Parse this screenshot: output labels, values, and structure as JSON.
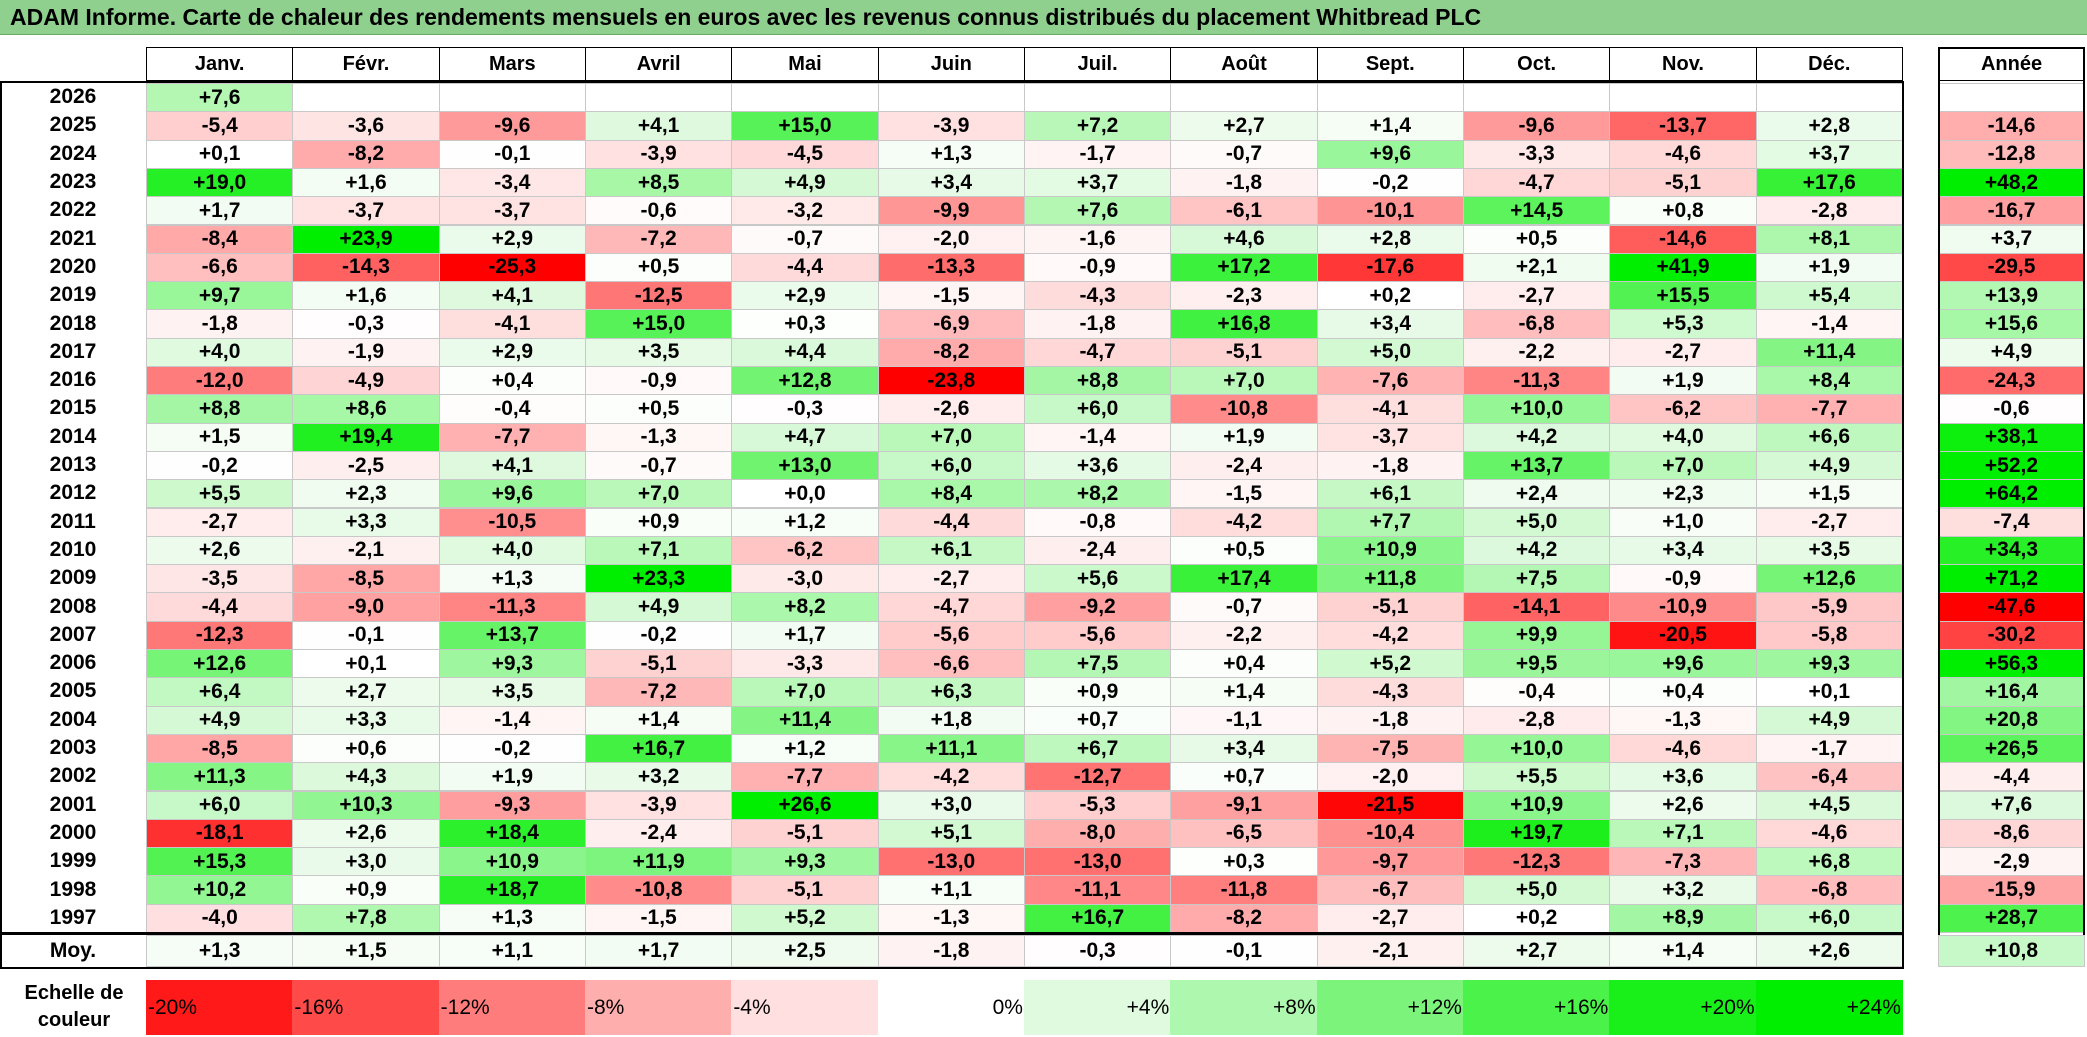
{
  "title": "ADAM Informe. Carte de chaleur des rendements mensuels en euros avec les revenus connus distribués du placement Whitbread PLC",
  "chart_data": {
    "type": "heatmap",
    "title": "ADAM Informe. Carte de chaleur des rendements mensuels en euros avec les revenus connus distribués du placement Whitbread PLC",
    "columns": [
      "Janv.",
      "Févr.",
      "Mars",
      "Avril",
      "Mai",
      "Juin",
      "Juil.",
      "Août",
      "Sept.",
      "Oct.",
      "Nov.",
      "Déc."
    ],
    "year_header": "Année",
    "rows": [
      {
        "year": "2026",
        "months": [
          "+7,6",
          "",
          "",
          "",
          "",
          "",
          "",
          "",
          "",
          "",
          "",
          ""
        ],
        "annual": ""
      },
      {
        "year": "2025",
        "months": [
          "-5,4",
          "-3,6",
          "-9,6",
          "+4,1",
          "+15,0",
          "-3,9",
          "+7,2",
          "+2,7",
          "+1,4",
          "-9,6",
          "-13,7",
          "+2,8"
        ],
        "annual": "-14,6"
      },
      {
        "year": "2024",
        "months": [
          "+0,1",
          "-8,2",
          "-0,1",
          "-3,9",
          "-4,5",
          "+1,3",
          "-1,7",
          "-0,7",
          "+9,6",
          "-3,3",
          "-4,6",
          "+3,7"
        ],
        "annual": "-12,8"
      },
      {
        "year": "2023",
        "months": [
          "+19,0",
          "+1,6",
          "-3,4",
          "+8,5",
          "+4,9",
          "+3,4",
          "+3,7",
          "-1,8",
          "-0,2",
          "-4,7",
          "-5,1",
          "+17,6"
        ],
        "annual": "+48,2"
      },
      {
        "year": "2022",
        "months": [
          "+1,7",
          "-3,7",
          "-3,7",
          "-0,6",
          "-3,2",
          "-9,9",
          "+7,6",
          "-6,1",
          "-10,1",
          "+14,5",
          "+0,8",
          "-2,8"
        ],
        "annual": "-16,7"
      },
      {
        "year": "2021",
        "months": [
          "-8,4",
          "+23,9",
          "+2,9",
          "-7,2",
          "-0,7",
          "-2,0",
          "-1,6",
          "+4,6",
          "+2,8",
          "+0,5",
          "-14,6",
          "+8,1"
        ],
        "annual": "+3,7"
      },
      {
        "year": "2020",
        "months": [
          "-6,6",
          "-14,3",
          "-25,3",
          "+0,5",
          "-4,4",
          "-13,3",
          "-0,9",
          "+17,2",
          "-17,6",
          "+2,1",
          "+41,9",
          "+1,9"
        ],
        "annual": "-29,5"
      },
      {
        "year": "2019",
        "months": [
          "+9,7",
          "+1,6",
          "+4,1",
          "-12,5",
          "+2,9",
          "-1,5",
          "-4,3",
          "-2,3",
          "+0,2",
          "-2,7",
          "+15,5",
          "+5,4"
        ],
        "annual": "+13,9"
      },
      {
        "year": "2018",
        "months": [
          "-1,8",
          "-0,3",
          "-4,1",
          "+15,0",
          "+0,3",
          "-6,9",
          "-1,8",
          "+16,8",
          "+3,4",
          "-6,8",
          "+5,3",
          "-1,4"
        ],
        "annual": "+15,6"
      },
      {
        "year": "2017",
        "months": [
          "+4,0",
          "-1,9",
          "+2,9",
          "+3,5",
          "+4,4",
          "-8,2",
          "-4,7",
          "-5,1",
          "+5,0",
          "-2,2",
          "-2,7",
          "+11,4"
        ],
        "annual": "+4,9"
      },
      {
        "year": "2016",
        "months": [
          "-12,0",
          "-4,9",
          "+0,4",
          "-0,9",
          "+12,8",
          "-23,8",
          "+8,8",
          "+7,0",
          "-7,6",
          "-11,3",
          "+1,9",
          "+8,4"
        ],
        "annual": "-24,3"
      },
      {
        "year": "2015",
        "months": [
          "+8,8",
          "+8,6",
          "-0,4",
          "+0,5",
          "-0,3",
          "-2,6",
          "+6,0",
          "-10,8",
          "-4,1",
          "+10,0",
          "-6,2",
          "-7,7"
        ],
        "annual": "-0,6"
      },
      {
        "year": "2014",
        "months": [
          "+1,5",
          "+19,4",
          "-7,7",
          "-1,3",
          "+4,7",
          "+7,0",
          "-1,4",
          "+1,9",
          "-3,7",
          "+4,2",
          "+4,0",
          "+6,6"
        ],
        "annual": "+38,1"
      },
      {
        "year": "2013",
        "months": [
          "-0,2",
          "-2,5",
          "+4,1",
          "-0,7",
          "+13,0",
          "+6,0",
          "+3,6",
          "-2,4",
          "-1,8",
          "+13,7",
          "+7,0",
          "+4,9"
        ],
        "annual": "+52,2"
      },
      {
        "year": "2012",
        "months": [
          "+5,5",
          "+2,3",
          "+9,6",
          "+7,0",
          "+0,0",
          "+8,4",
          "+8,2",
          "-1,5",
          "+6,1",
          "+2,4",
          "+2,3",
          "+1,5"
        ],
        "annual": "+64,2"
      },
      {
        "year": "2011",
        "months": [
          "-2,7",
          "+3,3",
          "-10,5",
          "+0,9",
          "+1,2",
          "-4,4",
          "-0,8",
          "-4,2",
          "+7,7",
          "+5,0",
          "+1,0",
          "-2,7"
        ],
        "annual": "-7,4"
      },
      {
        "year": "2010",
        "months": [
          "+2,6",
          "-2,1",
          "+4,0",
          "+7,1",
          "-6,2",
          "+6,1",
          "-2,4",
          "+0,5",
          "+10,9",
          "+4,2",
          "+3,4",
          "+3,5"
        ],
        "annual": "+34,3"
      },
      {
        "year": "2009",
        "months": [
          "-3,5",
          "-8,5",
          "+1,3",
          "+23,3",
          "-3,0",
          "-2,7",
          "+5,6",
          "+17,4",
          "+11,8",
          "+7,5",
          "-0,9",
          "+12,6"
        ],
        "annual": "+71,2"
      },
      {
        "year": "2008",
        "months": [
          "-4,4",
          "-9,0",
          "-11,3",
          "+4,9",
          "+8,2",
          "-4,7",
          "-9,2",
          "-0,7",
          "-5,1",
          "-14,1",
          "-10,9",
          "-5,9"
        ],
        "annual": "-47,6"
      },
      {
        "year": "2007",
        "months": [
          "-12,3",
          "-0,1",
          "+13,7",
          "-0,2",
          "+1,7",
          "-5,6",
          "-5,6",
          "-2,2",
          "-4,2",
          "+9,9",
          "-20,5",
          "-5,8"
        ],
        "annual": "-30,2"
      },
      {
        "year": "2006",
        "months": [
          "+12,6",
          "+0,1",
          "+9,3",
          "-5,1",
          "-3,3",
          "-6,6",
          "+7,5",
          "+0,4",
          "+5,2",
          "+9,5",
          "+9,6",
          "+9,3"
        ],
        "annual": "+56,3"
      },
      {
        "year": "2005",
        "months": [
          "+6,4",
          "+2,7",
          "+3,5",
          "-7,2",
          "+7,0",
          "+6,3",
          "+0,9",
          "+1,4",
          "-4,3",
          "-0,4",
          "+0,4",
          "+0,1"
        ],
        "annual": "+16,4"
      },
      {
        "year": "2004",
        "months": [
          "+4,9",
          "+3,3",
          "-1,4",
          "+1,4",
          "+11,4",
          "+1,8",
          "+0,7",
          "-1,1",
          "-1,8",
          "-2,8",
          "-1,3",
          "+4,9"
        ],
        "annual": "+20,8"
      },
      {
        "year": "2003",
        "months": [
          "-8,5",
          "+0,6",
          "-0,2",
          "+16,7",
          "+1,2",
          "+11,1",
          "+6,7",
          "+3,4",
          "-7,5",
          "+10,0",
          "-4,6",
          "-1,7"
        ],
        "annual": "+26,5"
      },
      {
        "year": "2002",
        "months": [
          "+11,3",
          "+4,3",
          "+1,9",
          "+3,2",
          "-7,7",
          "-4,2",
          "-12,7",
          "+0,7",
          "-2,0",
          "+5,5",
          "+3,6",
          "-6,4"
        ],
        "annual": "-4,4"
      },
      {
        "year": "2001",
        "months": [
          "+6,0",
          "+10,3",
          "-9,3",
          "-3,9",
          "+26,6",
          "+3,0",
          "-5,3",
          "-9,1",
          "-21,5",
          "+10,9",
          "+2,6",
          "+4,5"
        ],
        "annual": "+7,6"
      },
      {
        "year": "2000",
        "months": [
          "-18,1",
          "+2,6",
          "+18,4",
          "-2,4",
          "-5,1",
          "+5,1",
          "-8,0",
          "-6,5",
          "-10,4",
          "+19,7",
          "+7,1",
          "-4,6"
        ],
        "annual": "-8,6"
      },
      {
        "year": "1999",
        "months": [
          "+15,3",
          "+3,0",
          "+10,9",
          "+11,9",
          "+9,3",
          "-13,0",
          "-13,0",
          "+0,3",
          "-9,7",
          "-12,3",
          "-7,3",
          "+6,8"
        ],
        "annual": "-2,9"
      },
      {
        "year": "1998",
        "months": [
          "+10,2",
          "+0,9",
          "+18,7",
          "-10,8",
          "-5,1",
          "+1,1",
          "-11,1",
          "-11,8",
          "-6,7",
          "+5,0",
          "+3,2",
          "-6,8"
        ],
        "annual": "-15,9"
      },
      {
        "year": "1997",
        "months": [
          "-4,0",
          "+7,8",
          "+1,3",
          "-1,5",
          "+5,2",
          "-1,3",
          "+16,7",
          "-8,2",
          "-2,7",
          "+0,2",
          "+8,9",
          "+6,0"
        ],
        "annual": "+28,7"
      }
    ],
    "average": {
      "label": "Moy.",
      "months": [
        "+1,3",
        "+1,5",
        "+1,1",
        "+1,7",
        "+2,5",
        "-1,8",
        "-0,3",
        "-0,1",
        "-2,1",
        "+2,7",
        "+1,4",
        "+2,6"
      ],
      "annual": "+10,8"
    },
    "scale": {
      "label": "Echelle de couleur",
      "items": [
        {
          "left": "-20%",
          "right": ""
        },
        {
          "left": "-16%",
          "right": ""
        },
        {
          "left": "-12%",
          "right": ""
        },
        {
          "left": "-8%",
          "right": ""
        },
        {
          "left": "-4%",
          "right": ""
        },
        {
          "left": "",
          "right": "0%"
        },
        {
          "left": "",
          "right": "+4%"
        },
        {
          "left": "",
          "right": "+8%"
        },
        {
          "left": "",
          "right": "+12%"
        },
        {
          "left": "",
          "right": "+16%"
        },
        {
          "left": "",
          "right": "+20%"
        },
        {
          "left": "",
          "right": "+24%"
        }
      ],
      "values": [
        -20,
        -16,
        -12,
        -8,
        -4,
        0,
        4,
        8,
        12,
        16,
        20,
        24
      ]
    }
  }
}
